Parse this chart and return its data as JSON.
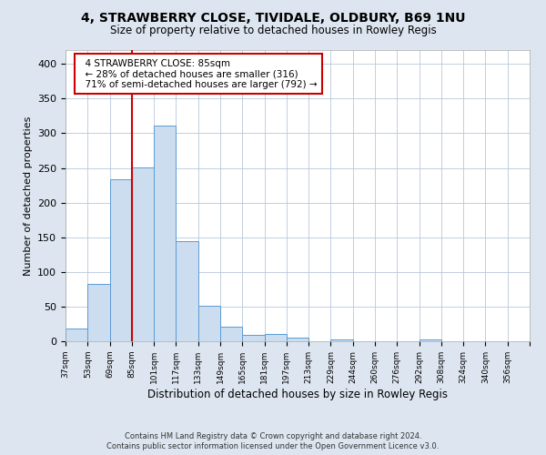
{
  "title": "4, STRAWBERRY CLOSE, TIVIDALE, OLDBURY, B69 1NU",
  "subtitle": "Size of property relative to detached houses in Rowley Regis",
  "xlabel": "Distribution of detached houses by size in Rowley Regis",
  "ylabel": "Number of detached properties",
  "bar_color": "#ccddf0",
  "bar_edge_color": "#5b9bd5",
  "bin_labels": [
    "37sqm",
    "53sqm",
    "69sqm",
    "85sqm",
    "101sqm",
    "117sqm",
    "133sqm",
    "149sqm",
    "165sqm",
    "181sqm",
    "197sqm",
    "213sqm",
    "229sqm",
    "244sqm",
    "260sqm",
    "276sqm",
    "292sqm",
    "308sqm",
    "324sqm",
    "340sqm",
    "356sqm"
  ],
  "bar_heights": [
    18,
    83,
    233,
    251,
    311,
    144,
    51,
    21,
    9,
    10,
    5,
    0,
    2,
    0,
    0,
    0,
    3,
    0,
    0,
    0,
    0
  ],
  "vline_x_idx": 3,
  "vline_color": "#cc0000",
  "ylim": [
    0,
    420
  ],
  "yticks": [
    0,
    50,
    100,
    150,
    200,
    250,
    300,
    350,
    400
  ],
  "annotation_title": "4 STRAWBERRY CLOSE: 85sqm",
  "annotation_line1": "← 28% of detached houses are smaller (316)",
  "annotation_line2": "71% of semi-detached houses are larger (792) →",
  "annotation_box_color": "#ffffff",
  "annotation_box_edge": "#cc0000",
  "footer1": "Contains HM Land Registry data © Crown copyright and database right 2024.",
  "footer2": "Contains public sector information licensed under the Open Government Licence v3.0.",
  "background_color": "#dde6f0",
  "plot_bg_color": "#ffffff",
  "grid_color": "#b8c8dc"
}
